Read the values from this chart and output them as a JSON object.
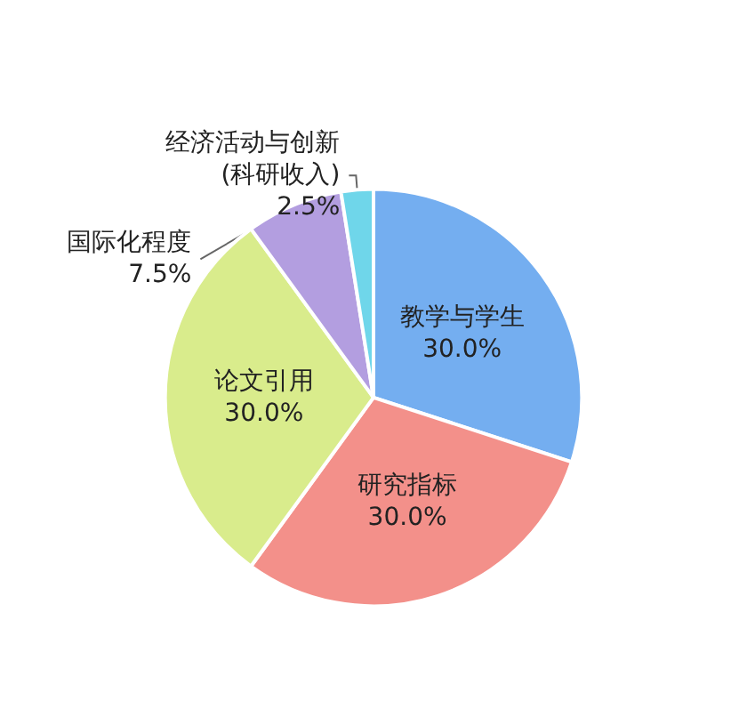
{
  "chart_data": {
    "type": "pie",
    "categories": [
      "教学与学生",
      "研究指标",
      "论文引用",
      "国际化程度",
      "经济活动与创新\n(科研收入)"
    ],
    "values": [
      30,
      30,
      30,
      7.5,
      2.5
    ],
    "value_labels": [
      "30.0%",
      "30.0%",
      "30.0%",
      "7.5%",
      "2.5%"
    ],
    "colors": [
      "#74aef0",
      "#f3908a",
      "#d9ec8c",
      "#b39ee0",
      "#6fd6ea"
    ],
    "legend": false
  }
}
